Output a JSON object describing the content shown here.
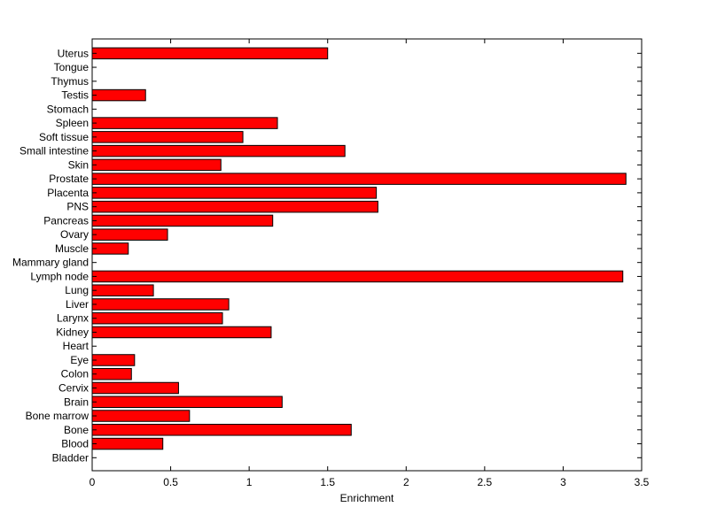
{
  "chart_data": {
    "type": "bar",
    "orientation": "horizontal",
    "xlabel": "Enrichment",
    "ylabel": "",
    "title": "",
    "xlim": [
      0,
      3.5
    ],
    "xticks": [
      "0",
      "0.5",
      "1",
      "1.5",
      "2",
      "2.5",
      "3",
      "3.5"
    ],
    "bar_color": "#ff0000",
    "grid": false,
    "categories": [
      "Bladder",
      "Blood",
      "Bone",
      "Bone marrow",
      "Brain",
      "Cervix",
      "Colon",
      "Eye",
      "Heart",
      "Kidney",
      "Larynx",
      "Liver",
      "Lung",
      "Lymph node",
      "Mammary gland",
      "Muscle",
      "Ovary",
      "Pancreas",
      "PNS",
      "Placenta",
      "Prostate",
      "Skin",
      "Small intestine",
      "Soft tissue",
      "Spleen",
      "Stomach",
      "Testis",
      "Thymus",
      "Tongue",
      "Uterus"
    ],
    "values": [
      0,
      0.45,
      1.65,
      0.62,
      1.21,
      0.55,
      0.25,
      0.27,
      0,
      1.14,
      0.83,
      0.87,
      0.39,
      3.38,
      0,
      0.23,
      0.48,
      1.15,
      1.82,
      1.81,
      3.4,
      0.82,
      1.61,
      0.96,
      1.18,
      0,
      0.34,
      0,
      0,
      1.5
    ]
  }
}
